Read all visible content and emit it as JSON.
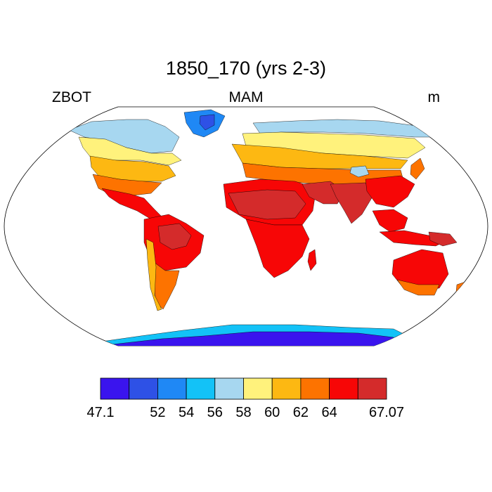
{
  "title": "1850_170 (yrs 2-3)",
  "left_label": "ZBOT",
  "center_label": "MAM",
  "right_label": "m",
  "colorbar": {
    "colors": [
      "#3a14ee",
      "#2e51e6",
      "#1f88f5",
      "#13c2f7",
      "#a7d7f0",
      "#fff27c",
      "#fdb812",
      "#fd7300",
      "#f70606",
      "#d42b2b"
    ],
    "labels": [
      "47.1",
      "",
      "52",
      "54",
      "56",
      "58",
      "60",
      "62",
      "64",
      "",
      "67.07"
    ]
  },
  "land_colors": {
    "hot": "#d42b2b",
    "red": "#f70606",
    "orange": "#fd7300",
    "amber": "#fdb812",
    "yellow": "#fff27c",
    "lightblue": "#a7d7f0",
    "cyan": "#13c2f7",
    "blue": "#1f88f5",
    "mblue": "#2e51e6",
    "indigo": "#3a14ee"
  }
}
